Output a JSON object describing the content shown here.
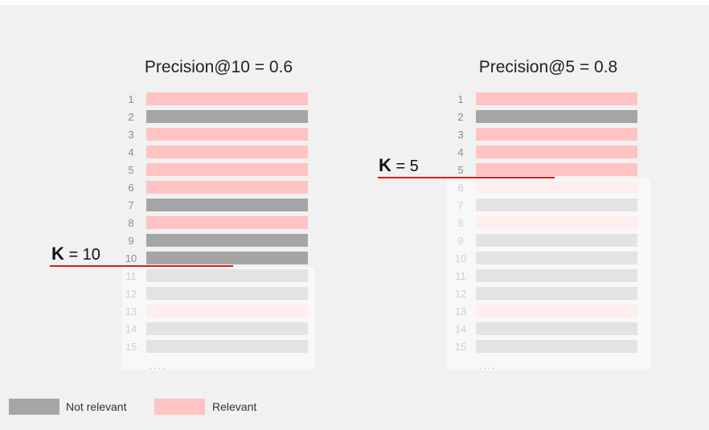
{
  "colors": {
    "background": "#f1f1f1",
    "relevant": "#ffc3c3",
    "not_relevant": "#a5a5a5",
    "faded_relevant": "#ffeeee",
    "faded_not_relevant": "#e3e3e3",
    "cutoff_line": "#dd1a1a"
  },
  "panels": [
    {
      "title": "Precision@10 = 0.6",
      "k_letter": "K",
      "k_rest": " = 10",
      "k": 10,
      "items": [
        {
          "n": "1",
          "relevant": true
        },
        {
          "n": "2",
          "relevant": false
        },
        {
          "n": "3",
          "relevant": true
        },
        {
          "n": "4",
          "relevant": true
        },
        {
          "n": "5",
          "relevant": true
        },
        {
          "n": "6",
          "relevant": true
        },
        {
          "n": "7",
          "relevant": false
        },
        {
          "n": "8",
          "relevant": true
        },
        {
          "n": "9",
          "relevant": false
        },
        {
          "n": "10",
          "relevant": false
        },
        {
          "n": "11",
          "relevant": false
        },
        {
          "n": "12",
          "relevant": false
        },
        {
          "n": "13",
          "relevant": true
        },
        {
          "n": "14",
          "relevant": false
        },
        {
          "n": "15",
          "relevant": false
        }
      ],
      "ellipsis": "...."
    },
    {
      "title": "Precision@5 = 0.8",
      "k_letter": "K",
      "k_rest": " = 5",
      "k": 5,
      "items": [
        {
          "n": "1",
          "relevant": true
        },
        {
          "n": "2",
          "relevant": false
        },
        {
          "n": "3",
          "relevant": true
        },
        {
          "n": "4",
          "relevant": true
        },
        {
          "n": "5",
          "relevant": true
        },
        {
          "n": "6",
          "relevant": true
        },
        {
          "n": "7",
          "relevant": false
        },
        {
          "n": "8",
          "relevant": true
        },
        {
          "n": "9",
          "relevant": false
        },
        {
          "n": "10",
          "relevant": false
        },
        {
          "n": "11",
          "relevant": false
        },
        {
          "n": "12",
          "relevant": false
        },
        {
          "n": "13",
          "relevant": true
        },
        {
          "n": "14",
          "relevant": false
        },
        {
          "n": "15",
          "relevant": false
        }
      ],
      "ellipsis": "...."
    }
  ],
  "legend": {
    "not_relevant_label": "Not relevant",
    "relevant_label": "Relevant"
  }
}
